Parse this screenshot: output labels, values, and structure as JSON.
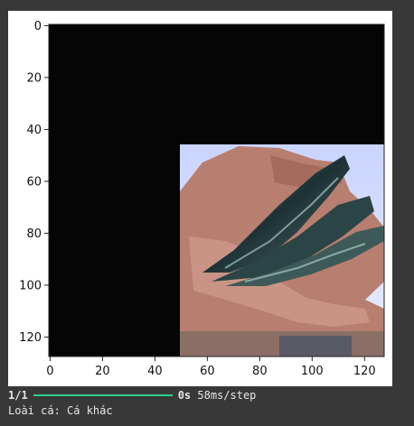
{
  "plot": {
    "x_ticks": [
      "0",
      "20",
      "40",
      "60",
      "80",
      "100",
      "120"
    ],
    "y_ticks": [
      "0",
      "20",
      "40",
      "60",
      "80",
      "100",
      "120"
    ],
    "image_size": [
      128,
      128
    ],
    "photo_region": {
      "x_start": 49,
      "x_end": 128,
      "y_start": 46,
      "y_end": 128
    },
    "colors": {
      "background_fill": "#000000"
    }
  },
  "console": {
    "progress_step": "1/1",
    "progress_fraction": 1.0,
    "time_bold": "0s",
    "time_rest": " 58ms/step",
    "result_line": "Loài cá: Cá khác"
  }
}
